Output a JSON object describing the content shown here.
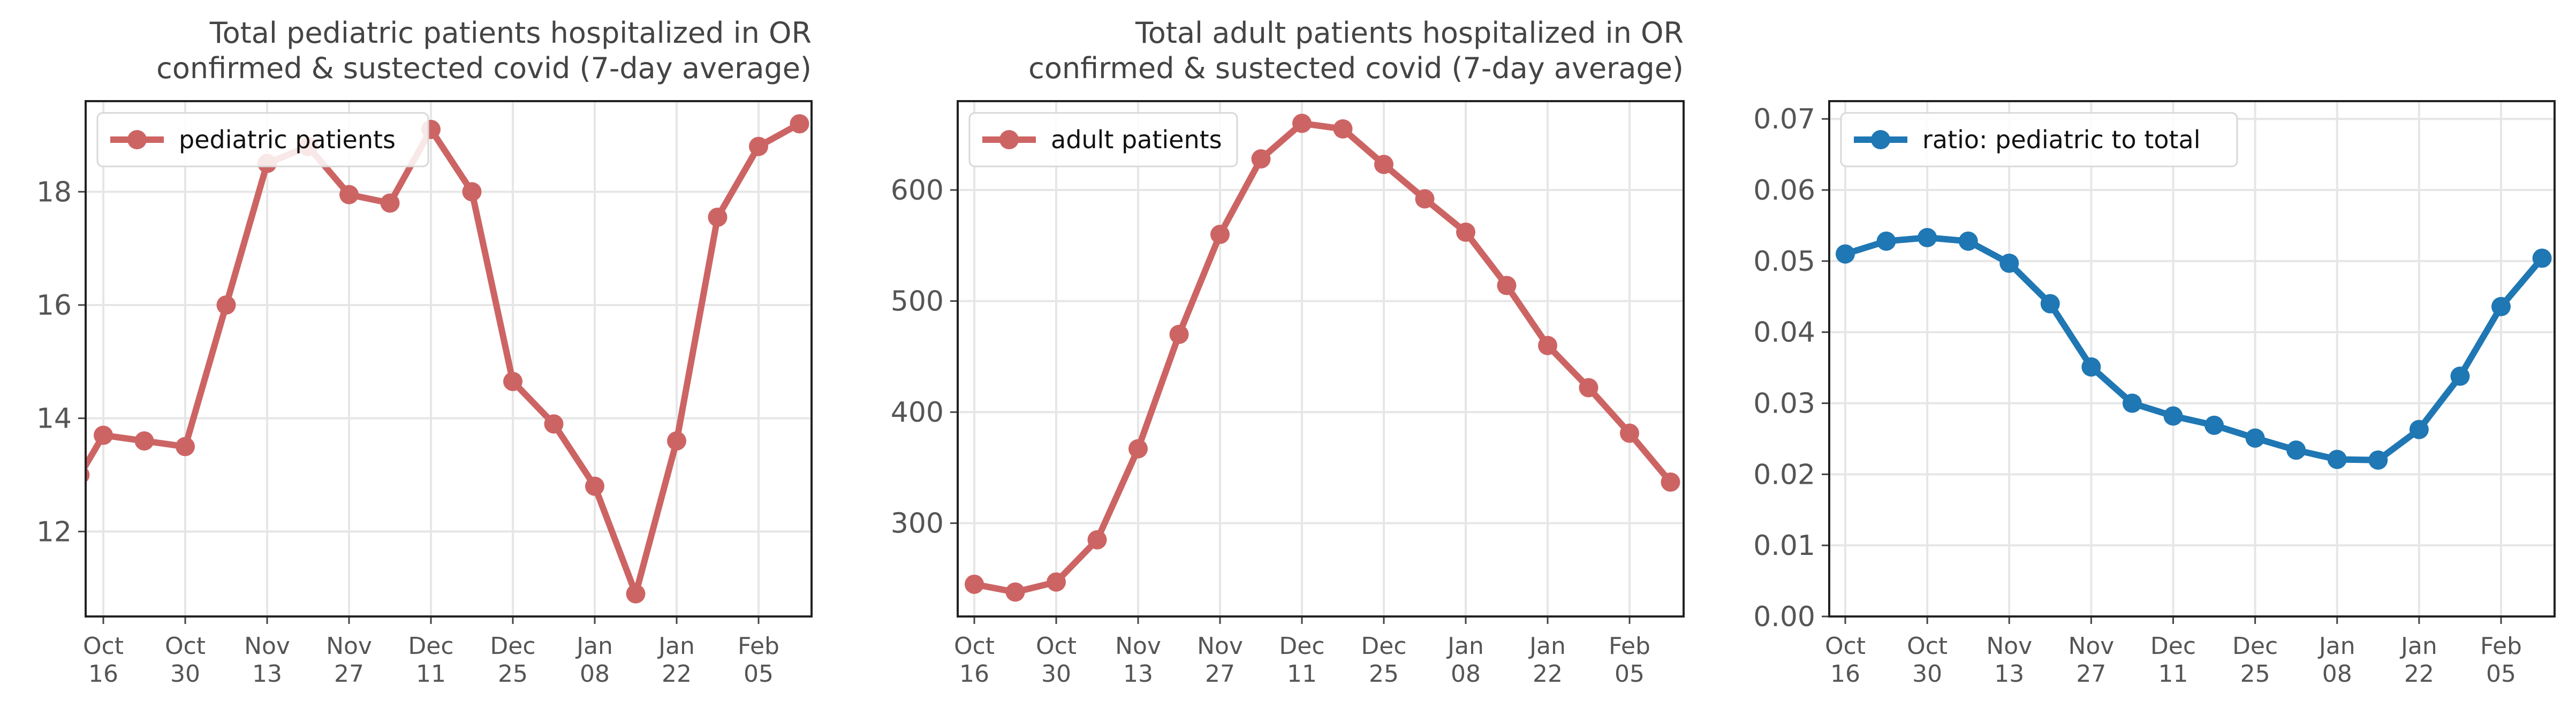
{
  "colors": {
    "adult_red": "#cd6464",
    "ratio_blue": "#1f77b4"
  },
  "chart_data": [
    {
      "type": "line",
      "title": "Total pediatric patients hospitalized in OR\nconfirmed & sustected covid (7-day average)",
      "x": [
        "2020-10-12",
        "2020-10-16",
        "2020-10-23",
        "2020-10-30",
        "2020-11-06",
        "2020-11-13",
        "2020-11-20",
        "2020-11-27",
        "2020-12-04",
        "2020-12-11",
        "2020-12-18",
        "2020-12-25",
        "2021-01-01",
        "2021-01-08",
        "2021-01-15",
        "2021-01-22",
        "2021-01-29",
        "2021-02-05",
        "2021-02-12"
      ],
      "series": [
        {
          "name": "pediatric patients",
          "values": [
            13.0,
            13.7,
            13.6,
            13.5,
            16.0,
            18.5,
            18.8,
            17.95,
            17.8,
            19.1,
            18.0,
            14.65,
            13.9,
            12.8,
            10.9,
            13.6,
            17.55,
            18.8,
            19.2
          ]
        }
      ],
      "xticks": [
        [
          "Oct",
          "16"
        ],
        [
          "Oct",
          "30"
        ],
        [
          "Nov",
          "13"
        ],
        [
          "Nov",
          "27"
        ],
        [
          "Dec",
          "11"
        ],
        [
          "Dec",
          "25"
        ],
        [
          "Jan",
          "08"
        ],
        [
          "Jan",
          "22"
        ],
        [
          "Feb",
          "05"
        ]
      ],
      "yticks": [
        "12",
        "14",
        "16",
        "18"
      ],
      "ylim": [
        10.5,
        19.6
      ],
      "grid": true,
      "legend": "top-left"
    },
    {
      "type": "line",
      "title": "Total adult patients hospitalized in OR\nconfirmed & sustected covid (7-day average)",
      "x": [
        "2020-10-16",
        "2020-10-23",
        "2020-10-30",
        "2020-11-06",
        "2020-11-13",
        "2020-11-20",
        "2020-11-27",
        "2020-12-04",
        "2020-12-11",
        "2020-12-18",
        "2020-12-25",
        "2021-01-01",
        "2021-01-08",
        "2021-01-15",
        "2021-01-22",
        "2021-01-29",
        "2021-02-05",
        "2021-02-12"
      ],
      "series": [
        {
          "name": "adult patients",
          "values": [
            245,
            238,
            247,
            285,
            367,
            470,
            560,
            628,
            660,
            655,
            623,
            592,
            562,
            514,
            460,
            422,
            381,
            337
          ]
        }
      ],
      "xticks": [
        [
          "Oct",
          "16"
        ],
        [
          "Oct",
          "30"
        ],
        [
          "Nov",
          "13"
        ],
        [
          "Nov",
          "27"
        ],
        [
          "Dec",
          "11"
        ],
        [
          "Dec",
          "25"
        ],
        [
          "Jan",
          "08"
        ],
        [
          "Jan",
          "22"
        ],
        [
          "Feb",
          "05"
        ]
      ],
      "yticks": [
        "300",
        "400",
        "500",
        "600"
      ],
      "ylim": [
        216,
        680
      ],
      "grid": true,
      "legend": "top-left"
    },
    {
      "type": "line",
      "title": "",
      "x": [
        "2020-10-16",
        "2020-10-23",
        "2020-10-30",
        "2020-11-06",
        "2020-11-13",
        "2020-11-20",
        "2020-11-27",
        "2020-12-04",
        "2020-12-11",
        "2020-12-18",
        "2020-12-25",
        "2021-01-01",
        "2021-01-08",
        "2021-01-15",
        "2021-01-22",
        "2021-01-29",
        "2021-02-05",
        "2021-02-12"
      ],
      "series": [
        {
          "name": "ratio: pediatric to total",
          "values": [
            0.051,
            0.0528,
            0.0533,
            0.0528,
            0.0497,
            0.044,
            0.0351,
            0.03,
            0.0282,
            0.0269,
            0.0251,
            0.0234,
            0.0221,
            0.022,
            0.0263,
            0.0338,
            0.0436,
            0.0504
          ]
        }
      ],
      "xticks": [
        [
          "Oct",
          "16"
        ],
        [
          "Oct",
          "30"
        ],
        [
          "Nov",
          "13"
        ],
        [
          "Nov",
          "27"
        ],
        [
          "Dec",
          "11"
        ],
        [
          "Dec",
          "25"
        ],
        [
          "Jan",
          "08"
        ],
        [
          "Jan",
          "22"
        ],
        [
          "Feb",
          "05"
        ]
      ],
      "yticks": [
        "0.00",
        "0.01",
        "0.02",
        "0.03",
        "0.04",
        "0.05",
        "0.06",
        "0.07"
      ],
      "ylim": [
        0,
        0.0725
      ],
      "grid": true,
      "legend": "top-left"
    }
  ]
}
